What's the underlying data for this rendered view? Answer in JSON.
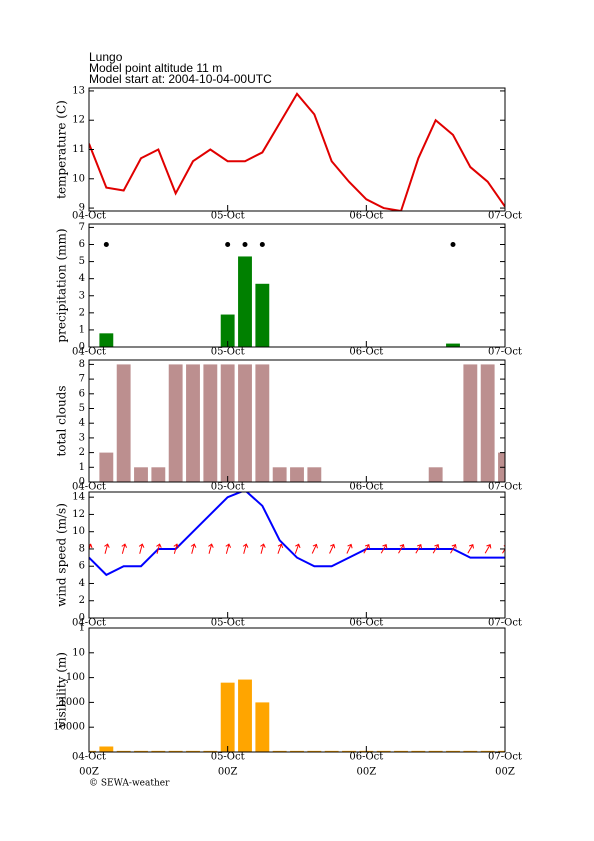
{
  "header": {
    "location": "Lungo",
    "altitude": "Model point altitude  11 m",
    "start": "Model start at: 2004-10-04-00UTC"
  },
  "footer": "© SEWA-weather",
  "chart_data": [
    {
      "type": "line",
      "ylabel": "temperature (C)",
      "x": [
        0,
        3,
        6,
        9,
        12,
        15,
        18,
        21,
        24,
        27,
        30,
        33,
        36,
        39,
        42,
        45,
        48,
        51,
        54,
        57,
        60,
        63,
        66,
        69,
        72
      ],
      "series": [
        {
          "color": "#e00000",
          "values": [
            11.2,
            9.7,
            9.6,
            10.7,
            11.0,
            9.5,
            10.6,
            11.0,
            10.6,
            10.6,
            10.9,
            11.9,
            12.9,
            12.2,
            10.6,
            9.9,
            9.3,
            9.0,
            8.9,
            10.7,
            12.0,
            11.5,
            10.4,
            9.9,
            9.05
          ]
        }
      ],
      "xlim": [
        0,
        72
      ],
      "xticks": [
        {
          "value": 0,
          "label": "04-Oct"
        },
        {
          "value": 24,
          "label": "05-Oct"
        },
        {
          "value": 48,
          "label": "06-Oct"
        },
        {
          "value": 72,
          "label": "07-Oct"
        }
      ],
      "ylim": [
        8.9,
        13.1
      ],
      "yticks": [
        9,
        10,
        11,
        12,
        13
      ]
    },
    {
      "type": "bar",
      "ylabel": "precipitation (mm)",
      "x": [
        0,
        3,
        6,
        9,
        12,
        15,
        18,
        21,
        24,
        27,
        30,
        33,
        36,
        39,
        42,
        45,
        48,
        51,
        54,
        57,
        60,
        63,
        66,
        69,
        72
      ],
      "series": [
        {
          "color": "#008000",
          "values": [
            0,
            0.8,
            0,
            0,
            0,
            0,
            0,
            0,
            1.9,
            5.3,
            3.7,
            0,
            0,
            0,
            0,
            0,
            0,
            0,
            0,
            0,
            0,
            0.2,
            0,
            0,
            0
          ]
        },
        {
          "type": "scatter",
          "color": "#000000",
          "x": [
            3,
            24,
            27,
            30,
            63
          ],
          "values": [
            6,
            6,
            6,
            6,
            6
          ]
        }
      ],
      "xlim": [
        0,
        72
      ],
      "xticks": [
        {
          "value": 0,
          "label": "04-Oct"
        },
        {
          "value": 24,
          "label": "05-Oct"
        },
        {
          "value": 48,
          "label": "06-Oct"
        },
        {
          "value": 72,
          "label": "07-Oct"
        }
      ],
      "ylim": [
        0,
        7.2
      ],
      "yticks": [
        0,
        1,
        2,
        3,
        4,
        5,
        6,
        7
      ]
    },
    {
      "type": "bar",
      "ylabel": "total clouds",
      "x": [
        0,
        3,
        6,
        9,
        12,
        15,
        18,
        21,
        24,
        27,
        30,
        33,
        36,
        39,
        42,
        45,
        48,
        51,
        54,
        57,
        60,
        63,
        66,
        69,
        72
      ],
      "series": [
        {
          "color": "#bc8f8f",
          "values": [
            0,
            2,
            8,
            1,
            1,
            8,
            8,
            8,
            8,
            8,
            8,
            1,
            1,
            1,
            0,
            0,
            0,
            0,
            0,
            0,
            1,
            0,
            8,
            8,
            2
          ]
        }
      ],
      "xlim": [
        0,
        72
      ],
      "xticks": [
        {
          "value": 0,
          "label": "04-Oct"
        },
        {
          "value": 24,
          "label": "05-Oct"
        },
        {
          "value": 48,
          "label": "06-Oct"
        },
        {
          "value": 72,
          "label": "07-Oct"
        }
      ],
      "ylim": [
        0,
        8.3
      ],
      "yticks": [
        0,
        1,
        2,
        3,
        4,
        5,
        6,
        7,
        8
      ]
    },
    {
      "type": "line",
      "ylabel": "wind speed (m/s)",
      "x": [
        0,
        3,
        6,
        9,
        12,
        15,
        18,
        21,
        24,
        27,
        30,
        33,
        36,
        39,
        42,
        45,
        48,
        51,
        54,
        57,
        60,
        63,
        66,
        69,
        72
      ],
      "series": [
        {
          "color": "#0000ff",
          "values": [
            7,
            5,
            6,
            6,
            8,
            8,
            10,
            12,
            14,
            14.8,
            13,
            9,
            7,
            6,
            6,
            7,
            8,
            8,
            8,
            8,
            8,
            8,
            7,
            7,
            7
          ]
        },
        {
          "type": "arrows",
          "color": "#ff0000",
          "values": [
            8,
            8,
            8,
            8,
            8,
            8,
            8,
            8,
            8,
            8,
            8,
            8,
            8,
            8,
            8,
            8,
            8,
            8,
            8,
            8,
            8,
            8,
            8,
            8,
            8
          ],
          "direction": [
            20,
            15,
            15,
            15,
            15,
            15,
            15,
            15,
            15,
            15,
            15,
            20,
            20,
            25,
            25,
            25,
            30,
            30,
            30,
            30,
            30,
            30,
            30,
            30,
            30
          ]
        }
      ],
      "xlim": [
        0,
        72
      ],
      "xticks": [
        {
          "value": 0,
          "label": "04-Oct"
        },
        {
          "value": 24,
          "label": "05-Oct"
        },
        {
          "value": 48,
          "label": "06-Oct"
        },
        {
          "value": 72,
          "label": "07-Oct"
        }
      ],
      "ylim": [
        0,
        14.6
      ],
      "yticks": [
        0,
        2,
        4,
        6,
        8,
        10,
        12,
        14
      ]
    },
    {
      "type": "bar",
      "ylabel": "visibility (m)",
      "log": true,
      "inverted": true,
      "x": [
        0,
        3,
        6,
        9,
        12,
        15,
        18,
        21,
        24,
        27,
        30,
        33,
        36,
        39,
        42,
        45,
        48,
        51,
        54,
        57,
        60,
        63,
        66,
        69,
        72
      ],
      "series": [
        {
          "color": "#ffa500",
          "values": [
            90000,
            60000,
            90000,
            90000,
            90000,
            90000,
            90000,
            90000,
            160,
            120,
            1000,
            90000,
            90000,
            90000,
            90000,
            90000,
            90000,
            90000,
            90000,
            90000,
            90000,
            90000,
            90000,
            90000,
            90000
          ]
        }
      ],
      "xlim": [
        0,
        72
      ],
      "xticks": [
        {
          "value": 0,
          "label": "04-Oct"
        },
        {
          "value": 24,
          "label": "05-Oct"
        },
        {
          "value": 48,
          "label": "06-Oct"
        },
        {
          "value": 72,
          "label": "07-Oct"
        }
      ],
      "xtick_sublabels": [
        "00Z",
        "00Z",
        "00Z",
        "00Z"
      ],
      "ylim": [
        1,
        100000
      ],
      "yticks": [
        1,
        10,
        100,
        1000,
        10000
      ]
    }
  ]
}
